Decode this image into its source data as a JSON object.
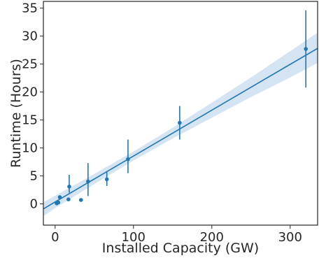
{
  "chart_data": {
    "type": "scatter",
    "xlabel": "Installed Capacity (GW)",
    "ylabel": "Runtime (Hours)",
    "xlim": [
      -15,
      335
    ],
    "ylim": [
      -3.8,
      36.2
    ],
    "xticks": [
      0,
      100,
      200,
      300
    ],
    "yticks": [
      0,
      5,
      10,
      15,
      20,
      25,
      30,
      35
    ],
    "grid": false,
    "color": "#1f77b4",
    "band_color": "#c6dbef",
    "points": [
      {
        "x": 2,
        "y": 0.1
      },
      {
        "x": 4,
        "y": 0.25
      },
      {
        "x": 6,
        "y": 1.2,
        "err": [
          0.9,
          1.5
        ]
      },
      {
        "x": 17,
        "y": 0.8
      },
      {
        "x": 18,
        "y": 3.1,
        "err": [
          2.0,
          5.2
        ]
      },
      {
        "x": 33,
        "y": 0.7
      },
      {
        "x": 42,
        "y": 4.0,
        "err": [
          1.4,
          7.3
        ]
      },
      {
        "x": 66,
        "y": 4.4,
        "err": [
          3.2,
          5.8
        ]
      },
      {
        "x": 93,
        "y": 8.0,
        "err": [
          5.5,
          11.5
        ]
      },
      {
        "x": 159,
        "y": 14.5,
        "err": [
          11.5,
          17.5
        ]
      },
      {
        "x": 320,
        "y": 27.7,
        "err": [
          20.8,
          34.6
        ]
      }
    ],
    "regression": {
      "x": [
        -15,
        0,
        50,
        100,
        150,
        200,
        250,
        300,
        335
      ],
      "y": [
        -0.9,
        0.35,
        4.45,
        8.55,
        12.65,
        16.75,
        20.85,
        24.95,
        27.8
      ],
      "lower": [
        -2.2,
        -0.75,
        3.55,
        7.75,
        11.7,
        15.4,
        19.1,
        22.6,
        25.2
      ],
      "upper": [
        0.3,
        1.45,
        5.35,
        9.35,
        13.6,
        18.1,
        22.6,
        27.3,
        30.6
      ]
    }
  }
}
